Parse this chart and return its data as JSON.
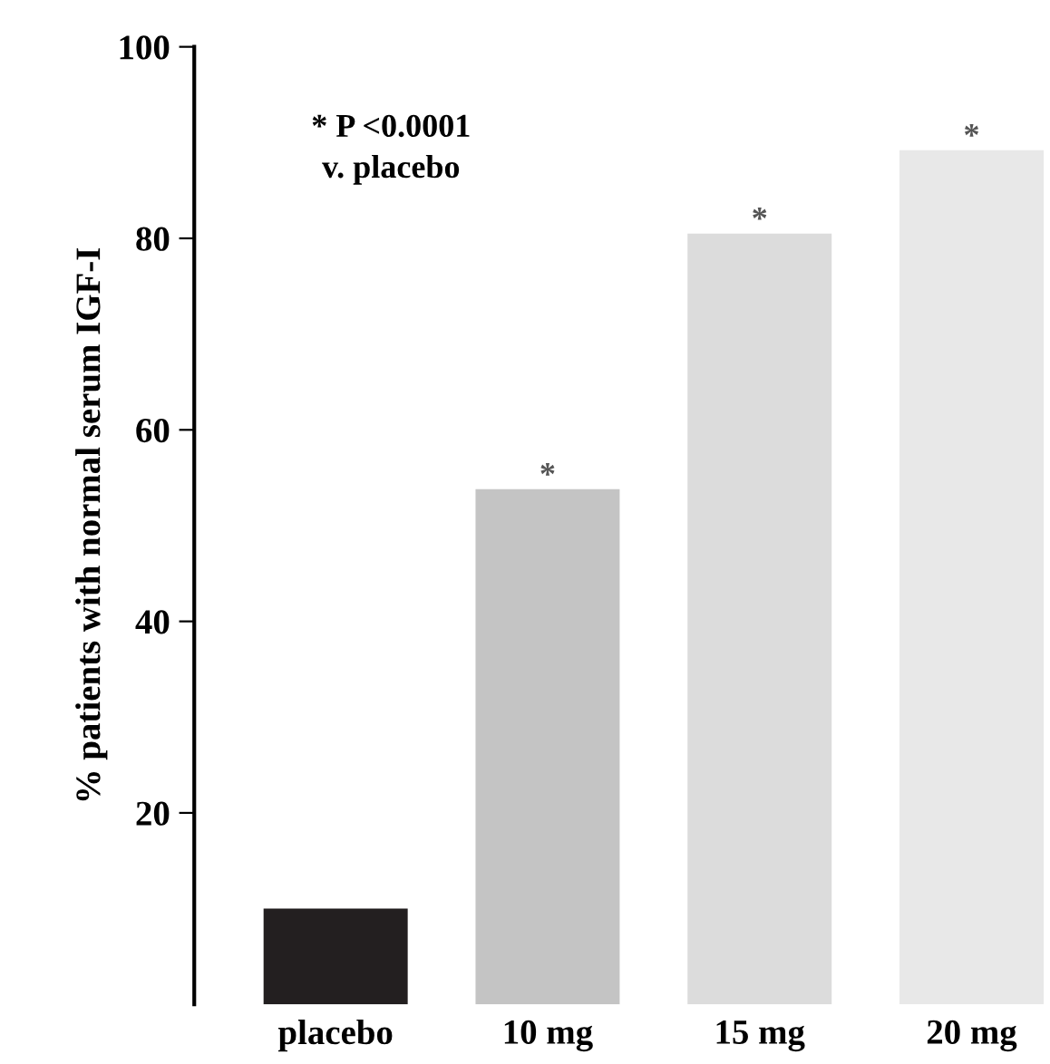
{
  "chart_data": {
    "type": "bar",
    "ylabel": "% patients with normal serum IGF-I",
    "categories": [
      "placebo",
      "10 mg",
      "15 mg",
      "20 mg"
    ],
    "values": [
      10,
      53.8,
      80.5,
      89.2
    ],
    "colors": [
      "#231f20",
      "#c4c4c4",
      "#dcdcdc",
      "#e8e8e8"
    ],
    "ylim": [
      0,
      100
    ],
    "yticks": [
      20,
      40,
      60,
      80,
      100
    ],
    "grid": false,
    "legend": false,
    "annotations": [
      "* P <0.0001\nv. placebo",
      {
        "text": "*",
        "x": "10 mg",
        "y": 53.8
      },
      {
        "text": "*",
        "x": "15 mg",
        "y": 80.5
      },
      {
        "text": "*",
        "x": "20 mg",
        "y": 89.2
      }
    ]
  }
}
